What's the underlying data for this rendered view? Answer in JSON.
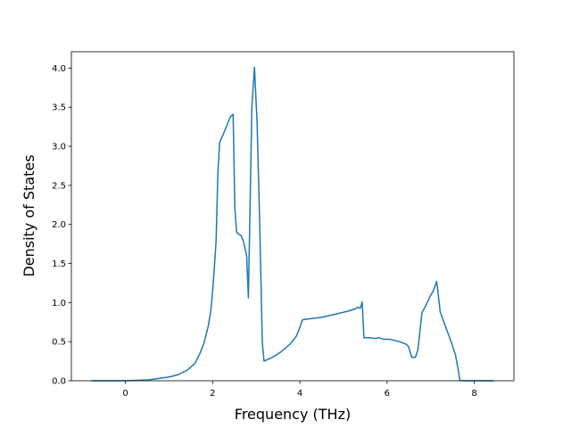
{
  "chart_data": {
    "type": "line",
    "x_label": "Frequency (THz)",
    "y_label": "Density of States",
    "xlim": [
      -1.24,
      8.91
    ],
    "ylim": [
      0,
      4.21
    ],
    "xticks": [
      0,
      2,
      4,
      6,
      8
    ],
    "yticks": [
      {
        "value": 0,
        "label": "0.0"
      },
      {
        "value": 0.5,
        "label": "0.5"
      },
      {
        "value": 1,
        "label": "1.0"
      },
      {
        "value": 1.5,
        "label": "1.5"
      },
      {
        "value": 2,
        "label": "2.0"
      },
      {
        "value": 2.5,
        "label": "2.5"
      },
      {
        "value": 3,
        "label": "3.0"
      },
      {
        "value": 3.5,
        "label": "3.5"
      },
      {
        "value": 4,
        "label": "4.0"
      }
    ],
    "color": "#1f77b4",
    "x": [
      -0.78,
      0,
      0.51,
      1.02,
      1.22,
      1.43,
      1.59,
      1.71,
      1.8,
      1.9,
      1.96,
      2.0,
      2.04,
      2.08,
      2.12,
      2.16,
      2.24,
      2.33,
      2.41,
      2.47,
      2.51,
      2.55,
      2.61,
      2.65,
      2.71,
      2.78,
      2.82,
      2.9,
      2.96,
      3.02,
      3.08,
      3.14,
      3.18,
      3.37,
      3.57,
      3.78,
      3.92,
      4.0,
      4.06,
      4.18,
      4.49,
      4.8,
      5.1,
      5.27,
      5.33,
      5.39,
      5.43,
      5.47,
      5.61,
      5.71,
      5.82,
      5.92,
      6.06,
      6.29,
      6.43,
      6.49,
      6.57,
      6.65,
      6.71,
      6.8,
      6.88,
      6.98,
      7.06,
      7.14,
      7.22,
      7.35,
      7.47,
      7.57,
      7.63,
      7.67,
      7.71,
      8.45
    ],
    "values": [
      0,
      0,
      0.01,
      0.05,
      0.08,
      0.14,
      0.22,
      0.35,
      0.48,
      0.7,
      0.9,
      1.15,
      1.45,
      1.8,
      2.65,
      3.05,
      3.15,
      3.27,
      3.38,
      3.41,
      2.2,
      1.9,
      1.87,
      1.86,
      1.78,
      1.6,
      1.06,
      3.5,
      4.01,
      3.3,
      2.0,
      0.48,
      0.25,
      0.3,
      0.37,
      0.47,
      0.57,
      0.68,
      0.78,
      0.79,
      0.81,
      0.85,
      0.89,
      0.92,
      0.94,
      0.93,
      1.01,
      0.55,
      0.55,
      0.54,
      0.55,
      0.53,
      0.53,
      0.5,
      0.47,
      0.44,
      0.3,
      0.3,
      0.4,
      0.87,
      0.95,
      1.07,
      1.15,
      1.27,
      0.88,
      0.68,
      0.5,
      0.33,
      0.15,
      0.01,
      0,
      0
    ]
  }
}
